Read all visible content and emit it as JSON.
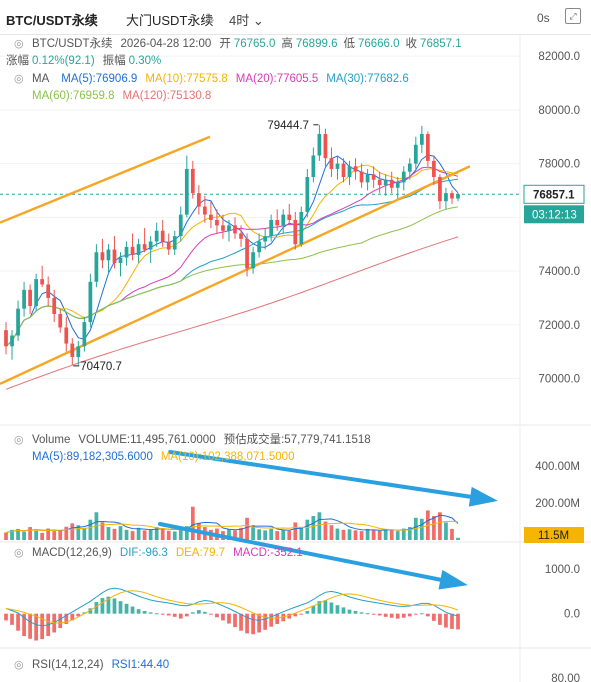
{
  "header": {
    "symbol": "BTC/USDT永续",
    "exchange": "大门USDT永续",
    "interval": "4时",
    "time_counter": "0s",
    "edit_icon": "pencil-icon",
    "expand_icon": "expand-icon"
  },
  "legend": {
    "ohlc_prefix": "BTC/USDT永续",
    "datetime": "2026-04-28 12:00",
    "open_label": "开",
    "open": "76765.0",
    "high_label": "高",
    "high": "76899.6",
    "low_label": "低",
    "low": "76666.0",
    "close_label": "收",
    "close": "76857.1",
    "change_label": "涨幅",
    "change": "0.12%(92.1)",
    "amp_label": "振幅",
    "amp": "0.30%",
    "ma_label": "MA",
    "ma5": "MA(5):76906.9",
    "ma10": "MA(10):77575.8",
    "ma20": "MA(20):77605.5",
    "ma30": "MA(30):77682.6",
    "ma60": "MA(60):76959.8",
    "ma120": "MA(120):75130.8",
    "volume_label": "Volume",
    "volume_text": "VOLUME:11,495,761.0000",
    "est_volume": "预估成交量:57,779,741.1518",
    "vol_ma5": "MA(5):89,182,305.6000",
    "vol_ma10": "MA(10):102,388,071.5000",
    "macd_label": "MACD(12,26,9)",
    "dif": "DIF:-96.3",
    "dea": "DEA:79.7",
    "macd_val": "MACD:-352.1",
    "rsi_label": "RSI(14,12,24)",
    "rsi1": "RSI1:44.40"
  },
  "annotations": {
    "high_point": "79444.7",
    "low_point": "70470.7",
    "price_tag": "76857.1",
    "countdown": "03:12:13",
    "vol_tag": "11.5M"
  },
  "colors": {
    "up": "#26a69a",
    "down": "#ef5350",
    "ma5": "#1e6fd9",
    "ma10": "#f4b400",
    "ma20": "#d83bb9",
    "ma30": "#24a0c8",
    "ma60": "#8bc34a",
    "ma120": "#e57373",
    "channel": "#f5a623",
    "arrow": "#2aa0e0"
  },
  "chart_data": [
    {
      "type": "candlestick",
      "name": "price",
      "y_ticks": [
        "82000.0",
        "80000.0",
        "78000.0",
        "76000.0",
        "74000.0",
        "72000.0",
        "70000.0"
      ],
      "ylim": [
        69200,
        82600
      ],
      "candles": [
        [
          71800,
          72100,
          70900,
          71200
        ],
        [
          71200,
          71800,
          70700,
          71600
        ],
        [
          71600,
          72900,
          71400,
          72600
        ],
        [
          72600,
          73600,
          72300,
          73300
        ],
        [
          73300,
          73500,
          72400,
          72700
        ],
        [
          72700,
          73900,
          72500,
          73700
        ],
        [
          73700,
          74200,
          73400,
          73500
        ],
        [
          73500,
          73800,
          72700,
          73000
        ],
        [
          73000,
          73300,
          72100,
          72400
        ],
        [
          72400,
          72600,
          71700,
          71900
        ],
        [
          71900,
          72300,
          71000,
          71300
        ],
        [
          71300,
          71500,
          70500,
          70800
        ],
        [
          70800,
          71400,
          70500,
          71200
        ],
        [
          71200,
          72300,
          71000,
          72100
        ],
        [
          72100,
          73900,
          71900,
          73600
        ],
        [
          73600,
          75000,
          73400,
          74700
        ],
        [
          74700,
          75200,
          74100,
          74400
        ],
        [
          74400,
          75000,
          73900,
          74800
        ],
        [
          74800,
          75300,
          74100,
          74300
        ],
        [
          74300,
          74700,
          73800,
          74500
        ],
        [
          74500,
          75100,
          74200,
          74900
        ],
        [
          74900,
          75400,
          74400,
          74600
        ],
        [
          74600,
          75200,
          74300,
          75000
        ],
        [
          75000,
          75600,
          74700,
          74800
        ],
        [
          74800,
          75300,
          74300,
          75100
        ],
        [
          75100,
          75800,
          74900,
          75500
        ],
        [
          75500,
          75900,
          74900,
          75100
        ],
        [
          75100,
          75400,
          74600,
          74800
        ],
        [
          74800,
          75500,
          74600,
          75300
        ],
        [
          75300,
          76400,
          75100,
          76100
        ],
        [
          76100,
          78300,
          76000,
          77800
        ],
        [
          77800,
          78100,
          76700,
          76900
        ],
        [
          76900,
          77200,
          76100,
          76400
        ],
        [
          76400,
          76800,
          75800,
          76100
        ],
        [
          76100,
          76600,
          75600,
          75900
        ],
        [
          75900,
          76300,
          75400,
          75700
        ],
        [
          75700,
          76100,
          75200,
          75500
        ],
        [
          75500,
          75900,
          75100,
          75700
        ],
        [
          75700,
          76000,
          75200,
          75400
        ],
        [
          75400,
          75700,
          74900,
          75200
        ],
        [
          75200,
          75400,
          73800,
          74100
        ],
        [
          74100,
          74900,
          73900,
          74700
        ],
        [
          74700,
          75400,
          74500,
          75100
        ],
        [
          75100,
          75600,
          74800,
          75300
        ],
        [
          75300,
          76100,
          75100,
          75900
        ],
        [
          75900,
          76300,
          75500,
          75700
        ],
        [
          75700,
          76300,
          75400,
          76100
        ],
        [
          76100,
          76500,
          75700,
          75900
        ],
        [
          75900,
          76200,
          74800,
          75000
        ],
        [
          75000,
          76400,
          74900,
          76200
        ],
        [
          76200,
          77800,
          76000,
          77500
        ],
        [
          77500,
          78600,
          77300,
          78300
        ],
        [
          78300,
          79444,
          78100,
          79100
        ],
        [
          79100,
          79300,
          77900,
          78200
        ],
        [
          78200,
          78600,
          77500,
          77800
        ],
        [
          77800,
          78300,
          77400,
          78000
        ],
        [
          78000,
          78200,
          77300,
          77500
        ],
        [
          77500,
          78100,
          77200,
          77900
        ],
        [
          77900,
          78200,
          77400,
          77700
        ],
        [
          77700,
          78000,
          77100,
          77300
        ],
        [
          77300,
          77800,
          77000,
          77600
        ],
        [
          77600,
          77900,
          77100,
          77400
        ],
        [
          77400,
          77700,
          76900,
          77200
        ],
        [
          77200,
          77600,
          76800,
          77400
        ],
        [
          77400,
          77700,
          76900,
          77100
        ],
        [
          77100,
          77500,
          76700,
          77300
        ],
        [
          77300,
          77900,
          77000,
          77700
        ],
        [
          77700,
          78200,
          77400,
          78000
        ],
        [
          78000,
          79000,
          77800,
          78700
        ],
        [
          78700,
          79400,
          78400,
          79100
        ],
        [
          79100,
          79200,
          77900,
          78100
        ],
        [
          78100,
          78300,
          77200,
          77500
        ],
        [
          77500,
          77600,
          76300,
          76600
        ],
        [
          76600,
          77100,
          76300,
          76900
        ],
        [
          76900,
          77000,
          76500,
          76700
        ],
        [
          76700,
          76900,
          76600,
          76857
        ]
      ],
      "extremes": {
        "high": 79444.7,
        "low": 70470.7
      },
      "last_price": 76857.1
    },
    {
      "type": "bar",
      "name": "volume",
      "y_ticks": [
        "400.00M",
        "200.00M"
      ],
      "ylim": [
        0,
        460
      ],
      "unit": "M",
      "values": [
        40,
        55,
        60,
        45,
        70,
        50,
        38,
        62,
        48,
        55,
        72,
        90,
        80,
        65,
        110,
        150,
        95,
        70,
        60,
        75,
        55,
        48,
        66,
        52,
        58,
        70,
        62,
        50,
        46,
        60,
        75,
        180,
        90,
        70,
        55,
        62,
        48,
        58,
        52,
        66,
        120,
        80,
        58,
        52,
        60,
        48,
        55,
        50,
        95,
        70,
        110,
        130,
        150,
        100,
        80,
        62,
        55,
        58,
        52,
        48,
        60,
        55,
        50,
        58,
        52,
        48,
        62,
        70,
        120,
        115,
        160,
        130,
        150,
        95,
        60,
        12
      ]
    },
    {
      "type": "bar",
      "name": "macd",
      "y_ticks": [
        "1000.0",
        "0.0"
      ],
      "ylim": [
        -700,
        1200
      ],
      "values": [
        -150,
        -250,
        -380,
        -500,
        -560,
        -600,
        -570,
        -500,
        -420,
        -320,
        -230,
        -150,
        -60,
        30,
        120,
        260,
        350,
        380,
        340,
        280,
        220,
        160,
        100,
        60,
        30,
        10,
        -10,
        -40,
        -70,
        -110,
        -60,
        30,
        80,
        40,
        -20,
        -80,
        -150,
        -220,
        -300,
        -380,
        -440,
        -460,
        -420,
        -360,
        -290,
        -230,
        -170,
        -110,
        -60,
        -20,
        60,
        180,
        280,
        300,
        250,
        190,
        140,
        90,
        60,
        30,
        10,
        -20,
        -40,
        -70,
        -90,
        -110,
        -90,
        -60,
        -20,
        10,
        -60,
        -160,
        -250,
        -310,
        -340,
        -352
      ]
    },
    {
      "type": "line",
      "name": "rsi",
      "y_ticks": [
        "80.00"
      ],
      "ylim": [
        0,
        100
      ],
      "values": [
        44.4
      ]
    }
  ]
}
